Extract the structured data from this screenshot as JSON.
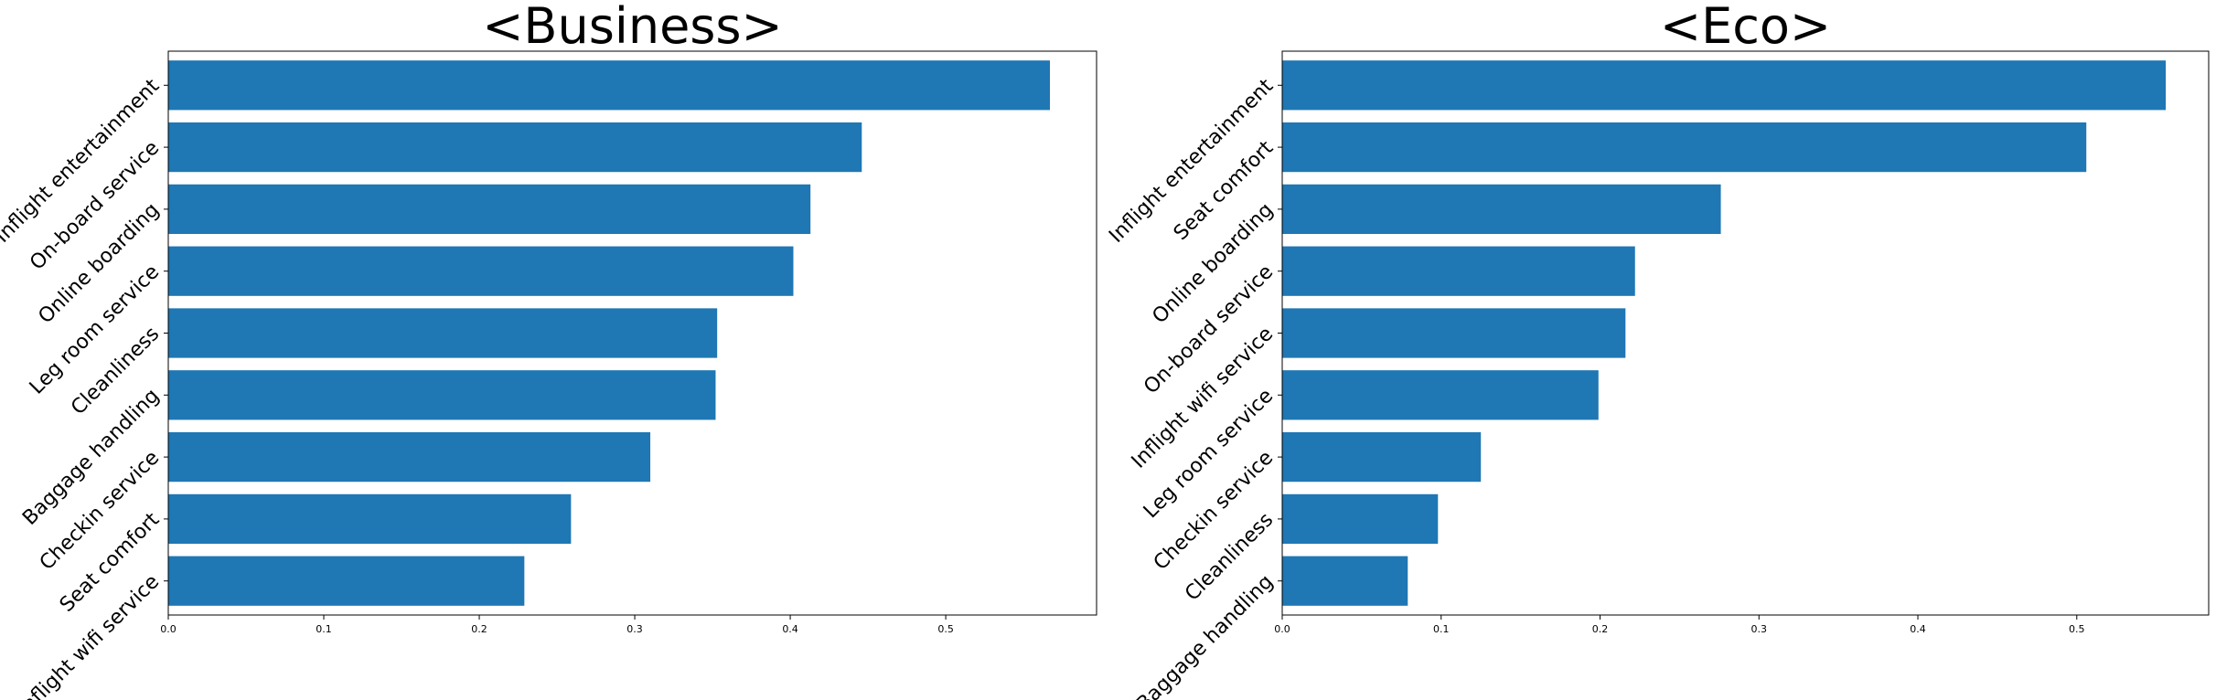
{
  "chart_data": [
    {
      "type": "bar",
      "orientation": "horizontal",
      "title": "<Business>",
      "xlabel": "",
      "ylabel": "",
      "categories": [
        "Inflight entertainment",
        "On-board service",
        "Online boarding",
        "Leg room service",
        "Cleanliness",
        "Baggage handling",
        "Checkin service",
        "Seat comfort",
        "Inflight wifi service"
      ],
      "values": [
        0.567,
        0.446,
        0.413,
        0.402,
        0.353,
        0.352,
        0.31,
        0.259,
        0.229
      ],
      "xlim": [
        0,
        0.597
      ],
      "xticks": [
        0.0,
        0.1,
        0.2,
        0.3,
        0.4,
        0.5
      ],
      "xtick_labels": [
        "0.0",
        "0.1",
        "0.2",
        "0.3",
        "0.4",
        "0.5"
      ],
      "bar_color": "#1f77b4",
      "grid": false,
      "legend": "none"
    },
    {
      "type": "bar",
      "orientation": "horizontal",
      "title": "<Eco>",
      "xlabel": "",
      "ylabel": "",
      "categories": [
        "Inflight entertainment",
        "Seat comfort",
        "Online boarding",
        "On-board service",
        "Inflight wifi service",
        "Leg room service",
        "Checkin service",
        "Cleanliness",
        "Baggage handling"
      ],
      "values": [
        0.556,
        0.506,
        0.276,
        0.222,
        0.216,
        0.199,
        0.125,
        0.098,
        0.079
      ],
      "xlim": [
        0,
        0.583
      ],
      "xticks": [
        0.0,
        0.1,
        0.2,
        0.3,
        0.4,
        0.5
      ],
      "xtick_labels": [
        "0.0",
        "0.1",
        "0.2",
        "0.3",
        "0.4",
        "0.5"
      ],
      "bar_color": "#1f77b4",
      "grid": false,
      "legend": "none"
    }
  ]
}
